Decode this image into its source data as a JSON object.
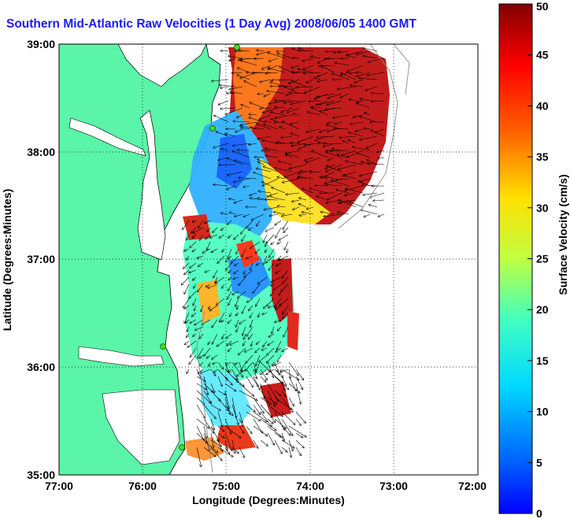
{
  "title": "Southern Mid-Atlantic Raw Velocities (1 Day Avg) 2008/06/05 1400 GMT",
  "map": {
    "x_label": "Longitude (Degrees:Minutes)",
    "y_label": "Latitude (Degrees:Minutes)",
    "x_ticks": [
      "77:00",
      "76:00",
      "75:00",
      "74:00",
      "73:00",
      "72:00"
    ],
    "y_ticks": [
      "39:00",
      "38:00",
      "37:00",
      "36:00",
      "35:00"
    ],
    "lon_range": [
      -77,
      -72
    ],
    "lat_range": [
      35,
      39
    ],
    "grid": "dotted",
    "land_color": "#5af5a8",
    "site_marker_color": "#44dd22"
  },
  "colorbar": {
    "label": "Surface Velocity (cm/s)",
    "ticks": [
      "0",
      "5",
      "10",
      "15",
      "20",
      "25",
      "30",
      "35",
      "40",
      "45",
      "50"
    ],
    "range": [
      0,
      50
    ],
    "colormap": "jet"
  }
}
